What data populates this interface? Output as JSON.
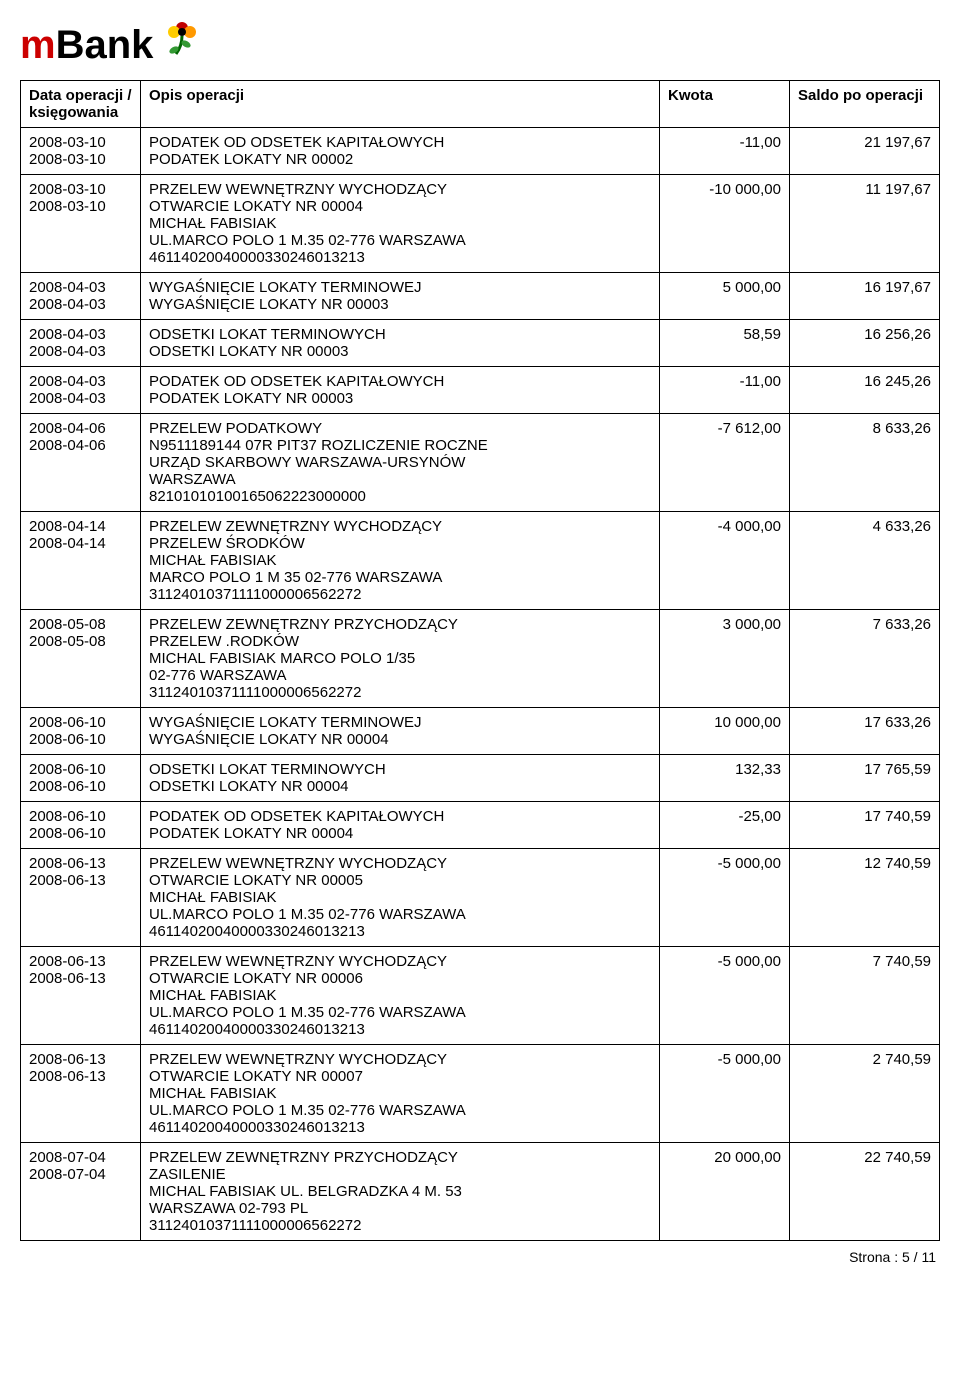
{
  "logo_text_black": "Bank",
  "logo_text_red": "m",
  "columns": {
    "date": "Data operacji / księgowania",
    "desc": "Opis operacji",
    "amount": "Kwota",
    "balance": "Saldo po operacji"
  },
  "footer": {
    "label": "Strona : ",
    "current": "5",
    "sep": " /  ",
    "total": "11"
  },
  "rows": [
    {
      "date1": "2008-03-10",
      "date2": "2008-03-10",
      "desc": [
        "PODATEK OD ODSETEK KAPITAŁOWYCH",
        "PODATEK LOKATY NR 00002"
      ],
      "amount": "-11,00",
      "balance": "21 197,67"
    },
    {
      "date1": "2008-03-10",
      "date2": "2008-03-10",
      "desc": [
        "PRZELEW WEWNĘTRZNY WYCHODZĄCY",
        "OTWARCIE LOKATY NR 00004",
        "MICHAŁ FABISIAK",
        "UL.MARCO POLO 1 M.35 02-776 WARSZAWA",
        "46114020040000330246013213"
      ],
      "amount": "-10 000,00",
      "balance": "11 197,67"
    },
    {
      "date1": "2008-04-03",
      "date2": "2008-04-03",
      "desc": [
        "WYGAŚNIĘCIE LOKATY TERMINOWEJ",
        "WYGAŚNIĘCIE LOKATY NR 00003"
      ],
      "amount": "5 000,00",
      "balance": "16 197,67"
    },
    {
      "date1": "2008-04-03",
      "date2": "2008-04-03",
      "desc": [
        "ODSETKI LOKAT TERMINOWYCH",
        "ODSETKI LOKATY NR 00003"
      ],
      "amount": "58,59",
      "balance": "16 256,26"
    },
    {
      "date1": "2008-04-03",
      "date2": "2008-04-03",
      "desc": [
        "PODATEK OD ODSETEK KAPITAŁOWYCH",
        "PODATEK LOKATY NR 00003"
      ],
      "amount": "-11,00",
      "balance": "16 245,26"
    },
    {
      "date1": "2008-04-06",
      "date2": "2008-04-06",
      "desc": [
        "PRZELEW PODATKOWY",
        "N9511189144 07R PIT37 ROZLICZENIE ROCZNE",
        "URZĄD SKARBOWY WARSZAWA-URSYNÓW",
        "WARSZAWA",
        "82101010100165062223000000"
      ],
      "amount": "-7 612,00",
      "balance": "8 633,26"
    },
    {
      "date1": "2008-04-14",
      "date2": "2008-04-14",
      "desc": [
        "PRZELEW ZEWNĘTRZNY WYCHODZĄCY",
        "PRZELEW ŚRODKÓW",
        "MICHAŁ FABISIAK",
        "MARCO POLO 1 M 35 02-776 WARSZAWA",
        "31124010371111000006562272"
      ],
      "amount": "-4 000,00",
      "balance": "4 633,26"
    },
    {
      "date1": "2008-05-08",
      "date2": "2008-05-08",
      "desc": [
        "PRZELEW ZEWNĘTRZNY PRZYCHODZĄCY",
        "PRZELEW .RODKÓW",
        "MICHAL FABISIAK MARCO POLO 1/35",
        "02-776 WARSZAWA",
        "31124010371111000006562272"
      ],
      "amount": "3 000,00",
      "balance": "7 633,26"
    },
    {
      "date1": "2008-06-10",
      "date2": "2008-06-10",
      "desc": [
        "WYGAŚNIĘCIE LOKATY TERMINOWEJ",
        "WYGAŚNIĘCIE LOKATY NR 00004"
      ],
      "amount": "10 000,00",
      "balance": "17 633,26"
    },
    {
      "date1": "2008-06-10",
      "date2": "2008-06-10",
      "desc": [
        "ODSETKI LOKAT TERMINOWYCH",
        "ODSETKI LOKATY NR 00004"
      ],
      "amount": "132,33",
      "balance": "17 765,59"
    },
    {
      "date1": "2008-06-10",
      "date2": "2008-06-10",
      "desc": [
        "PODATEK OD ODSETEK KAPITAŁOWYCH",
        "PODATEK LOKATY NR 00004"
      ],
      "amount": "-25,00",
      "balance": "17 740,59"
    },
    {
      "date1": "2008-06-13",
      "date2": "2008-06-13",
      "desc": [
        "PRZELEW WEWNĘTRZNY WYCHODZĄCY",
        "OTWARCIE LOKATY NR 00005",
        "MICHAŁ FABISIAK",
        "UL.MARCO POLO 1 M.35 02-776 WARSZAWA",
        "46114020040000330246013213"
      ],
      "amount": "-5 000,00",
      "balance": "12 740,59"
    },
    {
      "date1": "2008-06-13",
      "date2": "2008-06-13",
      "desc": [
        "PRZELEW WEWNĘTRZNY WYCHODZĄCY",
        "OTWARCIE LOKATY NR 00006",
        "MICHAŁ FABISIAK",
        "UL.MARCO POLO 1 M.35 02-776 WARSZAWA",
        "46114020040000330246013213"
      ],
      "amount": "-5 000,00",
      "balance": "7 740,59"
    },
    {
      "date1": "2008-06-13",
      "date2": "2008-06-13",
      "desc": [
        "PRZELEW WEWNĘTRZNY WYCHODZĄCY",
        "OTWARCIE LOKATY NR 00007",
        "MICHAŁ FABISIAK",
        "UL.MARCO POLO 1 M.35 02-776 WARSZAWA",
        "46114020040000330246013213"
      ],
      "amount": "-5 000,00",
      "balance": "2 740,59"
    },
    {
      "date1": "2008-07-04",
      "date2": "2008-07-04",
      "desc": [
        "PRZELEW ZEWNĘTRZNY PRZYCHODZĄCY",
        "ZASILENIE",
        "MICHAL FABISIAK UL. BELGRADZKA 4 M. 53",
        "WARSZAWA 02-793 PL",
        "31124010371111000006562272"
      ],
      "amount": "20 000,00",
      "balance": "22 740,59"
    }
  ]
}
